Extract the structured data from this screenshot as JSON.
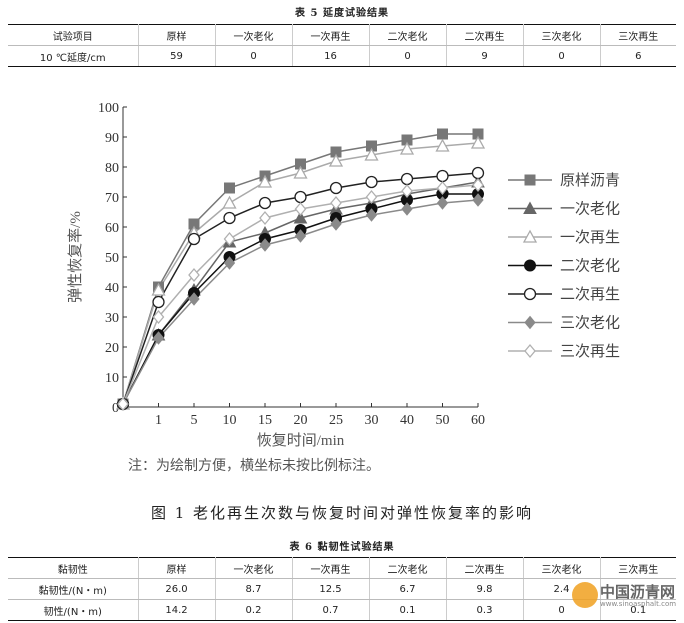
{
  "table5": {
    "caption": "表 5 延度试验结果",
    "headers": [
      "试验项目",
      "原样",
      "一次老化",
      "一次再生",
      "二次老化",
      "二次再生",
      "三次老化",
      "三次再生"
    ],
    "rows": [
      [
        "10 ℃延度/cm",
        "59",
        "0",
        "16",
        "0",
        "9",
        "0",
        "6"
      ]
    ]
  },
  "figure": {
    "caption": "图 1 老化再生次数与恢复时间对弹性恢复率的影响",
    "note": "注：为绘制方便，横坐标未按比例标注。"
  },
  "chart_data": {
    "type": "line",
    "xlabel": "恢复时间/min",
    "ylabel": "弹性恢复率/%",
    "x": [
      "0",
      "1",
      "5",
      "10",
      "15",
      "20",
      "25",
      "30",
      "40",
      "50",
      "60"
    ],
    "x_tick_labels": [
      "1",
      "5",
      "10",
      "15",
      "20",
      "25",
      "30",
      "40",
      "50",
      "60"
    ],
    "y_ticks": [
      0,
      10,
      20,
      30,
      40,
      50,
      60,
      70,
      80,
      90,
      100
    ],
    "ylim": [
      0,
      100
    ],
    "grid": false,
    "legend_position": "right",
    "series": [
      {
        "name": "原样沥青",
        "color": "#777777",
        "marker": "square",
        "values": [
          1,
          40,
          61,
          73,
          77,
          81,
          85,
          87,
          89,
          91,
          91
        ]
      },
      {
        "name": "一次老化",
        "color": "#666666",
        "marker": "triangle",
        "values": [
          1,
          24,
          39,
          55,
          58,
          63,
          66,
          68,
          71,
          73,
          75
        ]
      },
      {
        "name": "一次再生",
        "color": "#aaaaaa",
        "marker": "triangle-open",
        "values": [
          1,
          39,
          58,
          68,
          75,
          78,
          82,
          84,
          86,
          87,
          88
        ]
      },
      {
        "name": "二次老化",
        "color": "#111111",
        "marker": "circle",
        "values": [
          1,
          24,
          38,
          50,
          56,
          59,
          63,
          66,
          69,
          71,
          71
        ]
      },
      {
        "name": "二次再生",
        "color": "#222222",
        "marker": "circle-open",
        "values": [
          1,
          35,
          56,
          63,
          68,
          70,
          73,
          75,
          76,
          77,
          78
        ]
      },
      {
        "name": "三次老化",
        "color": "#8a8a8a",
        "marker": "diamond",
        "values": [
          1,
          23,
          36,
          48,
          54,
          57,
          61,
          64,
          66,
          68,
          69
        ]
      },
      {
        "name": "三次再生",
        "color": "#b0b0b0",
        "marker": "diamond-open",
        "values": [
          1,
          30,
          44,
          56,
          63,
          66,
          68,
          70,
          72,
          73,
          74
        ]
      }
    ]
  },
  "table6": {
    "caption": "表 6 黏韧性试验结果",
    "headers": [
      "黏韧性",
      "原样",
      "一次老化",
      "一次再生",
      "二次老化",
      "二次再生",
      "三次老化",
      "三次再生"
    ],
    "rows": [
      [
        "黏韧性/(N・m)",
        "26.0",
        "8.7",
        "12.5",
        "6.7",
        "9.8",
        "2.4",
        ""
      ],
      [
        "韧性/(N・m)",
        "14.2",
        "0.2",
        "0.7",
        "0.1",
        "0.3",
        "0",
        "0.1"
      ]
    ]
  },
  "watermark": {
    "text": "中国沥青网",
    "url": "www.sinoasphalt.com"
  }
}
